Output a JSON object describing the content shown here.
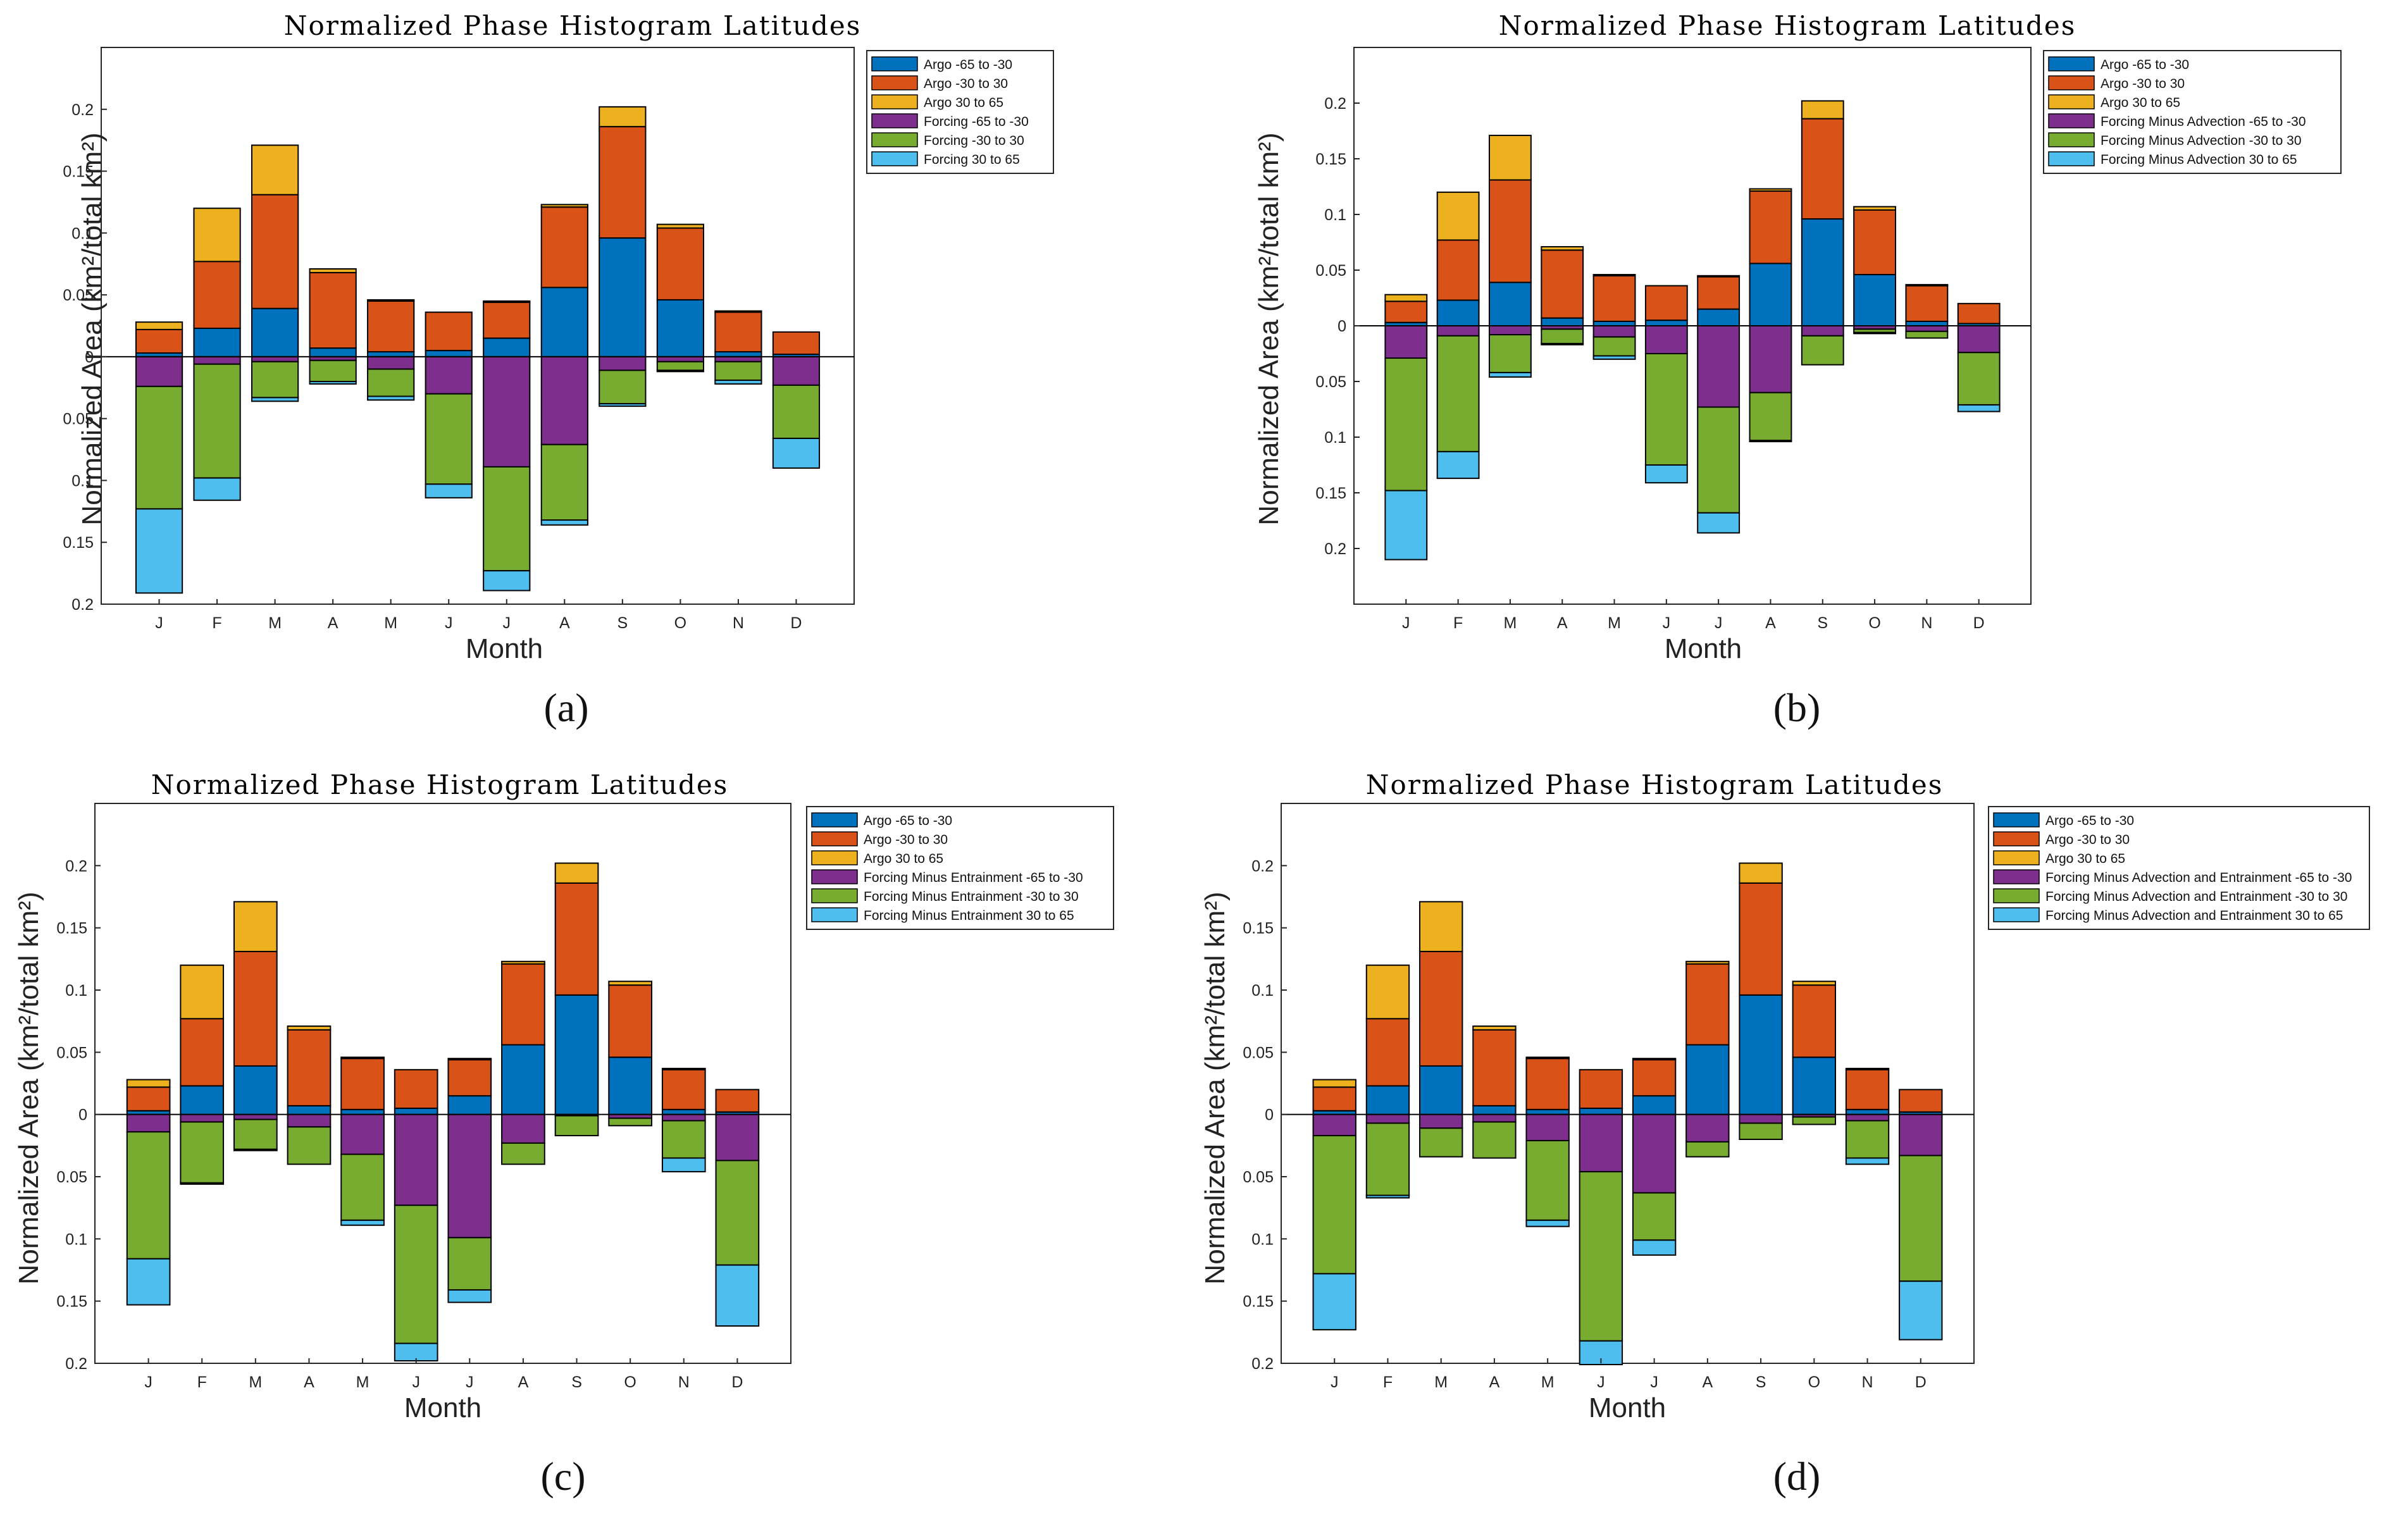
{
  "colors": {
    "argo_s": "#0072BD",
    "argo_eq": "#D95319",
    "argo_n": "#EDB120",
    "neg_s": "#7E2F8E",
    "neg_eq": "#77AC30",
    "neg_n": "#4DBEEE"
  },
  "chart_data": [
    {
      "type": "bar",
      "stacked": true,
      "title": "Normalized Phase Histogram Latitudes",
      "panel_label": "(a)",
      "xlabel": "Month",
      "ylabel": "Normalized Area (km²/total km²)",
      "categories": [
        "J",
        "F",
        "M",
        "A",
        "M",
        "J",
        "J",
        "A",
        "S",
        "O",
        "N",
        "D"
      ],
      "ylim": [
        -0.2,
        0.25
      ],
      "ytick_labels": [
        "0.2",
        "0.15",
        "0.1",
        "0.05",
        "0",
        "0.05",
        "0.1",
        "0.15",
        "0.2"
      ],
      "legend_position": "outside top-right",
      "series": [
        {
          "name": "Argo -65 to -30",
          "direction": "up",
          "values": [
            0.003,
            0.023,
            0.039,
            0.007,
            0.004,
            0.005,
            0.015,
            0.056,
            0.096,
            0.046,
            0.004,
            0.002
          ]
        },
        {
          "name": "Argo -30 to 30",
          "direction": "up",
          "values": [
            0.019,
            0.054,
            0.092,
            0.061,
            0.041,
            0.031,
            0.029,
            0.065,
            0.09,
            0.058,
            0.032,
            0.018
          ]
        },
        {
          "name": "Argo 30 to 65",
          "direction": "up",
          "values": [
            0.006,
            0.043,
            0.04,
            0.003,
            0.001,
            0.0,
            0.001,
            0.002,
            0.016,
            0.003,
            0.001,
            0.0
          ]
        },
        {
          "name": "Forcing -65 to -30",
          "direction": "down",
          "values": [
            0.024,
            0.006,
            0.004,
            0.003,
            0.01,
            0.03,
            0.089,
            0.071,
            0.011,
            0.004,
            0.004,
            0.023
          ]
        },
        {
          "name": "Forcing -30 to 30",
          "direction": "down",
          "values": [
            0.099,
            0.092,
            0.029,
            0.017,
            0.022,
            0.073,
            0.084,
            0.061,
            0.027,
            0.007,
            0.015,
            0.043
          ]
        },
        {
          "name": "Forcing 30 to 65",
          "direction": "down",
          "values": [
            0.068,
            0.018,
            0.003,
            0.002,
            0.003,
            0.011,
            0.016,
            0.004,
            0.002,
            0.001,
            0.003,
            0.024
          ]
        }
      ]
    },
    {
      "type": "bar",
      "stacked": true,
      "title": "Normalized Phase Histogram Latitudes",
      "panel_label": "(b)",
      "xlabel": "Month",
      "ylabel": "Normalized Area (km²/total km²)",
      "categories": [
        "J",
        "F",
        "M",
        "A",
        "M",
        "J",
        "J",
        "A",
        "S",
        "O",
        "N",
        "D"
      ],
      "ylim": [
        -0.25,
        0.25
      ],
      "ytick_labels": [
        "0.2",
        "0.15",
        "0.1",
        "0.05",
        "0",
        "0.05",
        "0.1",
        "0.15",
        "0.2"
      ],
      "legend_position": "outside top-right",
      "series": [
        {
          "name": "Argo -65 to -30",
          "direction": "up",
          "values": [
            0.003,
            0.023,
            0.039,
            0.007,
            0.004,
            0.005,
            0.015,
            0.056,
            0.096,
            0.046,
            0.004,
            0.002
          ]
        },
        {
          "name": "Argo -30 to 30",
          "direction": "up",
          "values": [
            0.019,
            0.054,
            0.092,
            0.061,
            0.041,
            0.031,
            0.029,
            0.065,
            0.09,
            0.058,
            0.032,
            0.018
          ]
        },
        {
          "name": "Argo 30 to 65",
          "direction": "up",
          "values": [
            0.006,
            0.043,
            0.04,
            0.003,
            0.001,
            0.0,
            0.001,
            0.002,
            0.016,
            0.003,
            0.001,
            0.0
          ]
        },
        {
          "name": "Forcing Minus Advection -65 to -30",
          "direction": "down",
          "values": [
            0.029,
            0.009,
            0.008,
            0.003,
            0.01,
            0.025,
            0.073,
            0.06,
            0.009,
            0.003,
            0.005,
            0.024
          ]
        },
        {
          "name": "Forcing Minus Advection -30 to 30",
          "direction": "down",
          "values": [
            0.119,
            0.104,
            0.034,
            0.013,
            0.017,
            0.1,
            0.095,
            0.043,
            0.026,
            0.003,
            0.006,
            0.047
          ]
        },
        {
          "name": "Forcing Minus Advection 30 to 65",
          "direction": "down",
          "values": [
            0.062,
            0.024,
            0.004,
            0.001,
            0.003,
            0.016,
            0.018,
            0.001,
            0.0,
            0.001,
            0.0,
            0.006
          ]
        }
      ]
    },
    {
      "type": "bar",
      "stacked": true,
      "title": "Normalized Phase Histogram Latitudes",
      "panel_label": "(c)",
      "xlabel": "Month",
      "ylabel": "Normalized Area (km²/total km²)",
      "categories": [
        "J",
        "F",
        "M",
        "A",
        "M",
        "J",
        "J",
        "A",
        "S",
        "O",
        "N",
        "D"
      ],
      "ylim": [
        -0.2,
        0.25
      ],
      "ytick_labels": [
        "0.2",
        "0.15",
        "0.1",
        "0.05",
        "0",
        "0.05",
        "0.1",
        "0.15",
        "0.2"
      ],
      "legend_position": "outside top-right",
      "series": [
        {
          "name": "Argo -65 to -30",
          "direction": "up",
          "values": [
            0.003,
            0.023,
            0.039,
            0.007,
            0.004,
            0.005,
            0.015,
            0.056,
            0.096,
            0.046,
            0.004,
            0.002
          ]
        },
        {
          "name": "Argo -30 to 30",
          "direction": "up",
          "values": [
            0.019,
            0.054,
            0.092,
            0.061,
            0.041,
            0.031,
            0.029,
            0.065,
            0.09,
            0.058,
            0.032,
            0.018
          ]
        },
        {
          "name": "Argo 30 to 65",
          "direction": "up",
          "values": [
            0.006,
            0.043,
            0.04,
            0.003,
            0.001,
            0.0,
            0.001,
            0.002,
            0.016,
            0.003,
            0.001,
            0.0
          ]
        },
        {
          "name": "Forcing Minus Entrainment -65 to -30",
          "direction": "down",
          "values": [
            0.014,
            0.006,
            0.004,
            0.01,
            0.032,
            0.073,
            0.099,
            0.023,
            0.001,
            0.003,
            0.005,
            0.037
          ]
        },
        {
          "name": "Forcing Minus Entrainment -30 to 30",
          "direction": "down",
          "values": [
            0.102,
            0.049,
            0.024,
            0.03,
            0.053,
            0.111,
            0.042,
            0.017,
            0.016,
            0.006,
            0.03,
            0.084
          ]
        },
        {
          "name": "Forcing Minus Entrainment 30 to 65",
          "direction": "down",
          "values": [
            0.037,
            0.001,
            0.001,
            0.0,
            0.004,
            0.014,
            0.01,
            0.0,
            0.0,
            0.0,
            0.011,
            0.049
          ]
        }
      ]
    },
    {
      "type": "bar",
      "stacked": true,
      "title": "Normalized Phase Histogram Latitudes",
      "panel_label": "(d)",
      "xlabel": "Month",
      "ylabel": "Normalized Area (km²/total km²)",
      "categories": [
        "J",
        "F",
        "M",
        "A",
        "M",
        "J",
        "J",
        "A",
        "S",
        "O",
        "N",
        "D"
      ],
      "ylim": [
        -0.2,
        0.25
      ],
      "ytick_labels": [
        "0.2",
        "0.15",
        "0.1",
        "0.05",
        "0",
        "0.05",
        "0.1",
        "0.15",
        "0.2"
      ],
      "legend_position": "outside top-right",
      "series": [
        {
          "name": "Argo -65 to -30",
          "direction": "up",
          "values": [
            0.003,
            0.023,
            0.039,
            0.007,
            0.004,
            0.005,
            0.015,
            0.056,
            0.096,
            0.046,
            0.004,
            0.002
          ]
        },
        {
          "name": "Argo -30 to 30",
          "direction": "up",
          "values": [
            0.019,
            0.054,
            0.092,
            0.061,
            0.041,
            0.031,
            0.029,
            0.065,
            0.09,
            0.058,
            0.032,
            0.018
          ]
        },
        {
          "name": "Argo 30 to 65",
          "direction": "up",
          "values": [
            0.006,
            0.043,
            0.04,
            0.003,
            0.001,
            0.0,
            0.001,
            0.002,
            0.016,
            0.003,
            0.001,
            0.0
          ]
        },
        {
          "name": "Forcing Minus Advection and Entrainment -65 to -30",
          "direction": "down",
          "values": [
            0.017,
            0.007,
            0.011,
            0.006,
            0.021,
            0.046,
            0.063,
            0.022,
            0.007,
            0.002,
            0.005,
            0.033
          ]
        },
        {
          "name": "Forcing Minus Advection and Entrainment -30 to 30",
          "direction": "down",
          "values": [
            0.111,
            0.058,
            0.023,
            0.029,
            0.064,
            0.136,
            0.038,
            0.012,
            0.013,
            0.006,
            0.03,
            0.101
          ]
        },
        {
          "name": "Forcing Minus Advection and Entrainment 30 to 65",
          "direction": "down",
          "values": [
            0.045,
            0.002,
            0.0,
            0.0,
            0.005,
            0.019,
            0.012,
            0.0,
            0.0,
            0.0,
            0.005,
            0.047
          ]
        }
      ]
    }
  ]
}
